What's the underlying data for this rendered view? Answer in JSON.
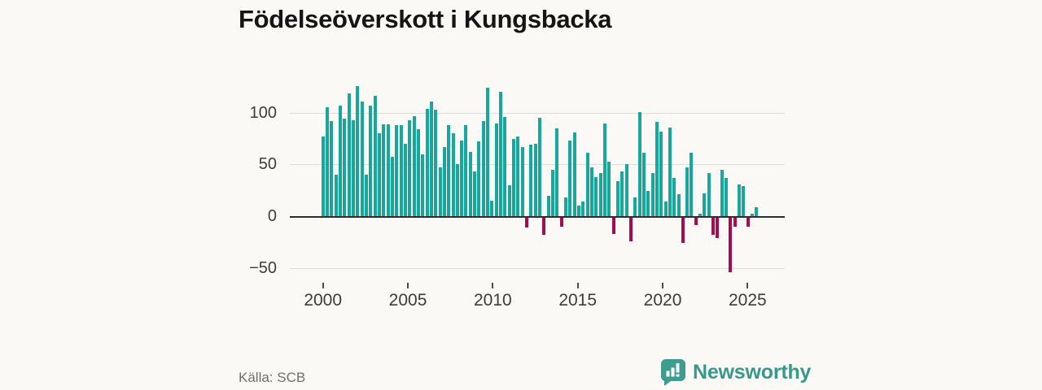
{
  "title": "Födelseöverskott i Kungsbacka",
  "source": "Källa: SCB",
  "branding": {
    "name": "Newsworthy",
    "logo_icon": "speech-bubble-bar-chart-icon",
    "color": "#37988c"
  },
  "colors": {
    "positive_bar": "#17a79c",
    "negative_bar": "#a50d50",
    "gridline": "#dcdcd8",
    "zero_line": "#2d2d2d",
    "background": "#fbf9f5",
    "axis_text": "#3c3c3c"
  },
  "chart_data": {
    "type": "bar",
    "title": "Födelseöverskott i Kungsbacka",
    "xlabel": "",
    "ylabel": "",
    "grid": "horizontal",
    "legend": "none",
    "frequency": "quarterly",
    "ylim": [
      -62,
      135
    ],
    "y_ticks": [
      100,
      50,
      0,
      -50
    ],
    "y_tick_labels": [
      "100",
      "50",
      "0",
      "−50"
    ],
    "x_tick_labels": [
      "2000",
      "2005",
      "2010",
      "2015",
      "2020",
      "2025"
    ],
    "categories": [
      "2000Q1",
      "2000Q2",
      "2000Q3",
      "2000Q4",
      "2001Q1",
      "2001Q2",
      "2001Q3",
      "2001Q4",
      "2002Q1",
      "2002Q2",
      "2002Q3",
      "2002Q4",
      "2003Q1",
      "2003Q2",
      "2003Q3",
      "2003Q4",
      "2004Q1",
      "2004Q2",
      "2004Q3",
      "2004Q4",
      "2005Q1",
      "2005Q2",
      "2005Q3",
      "2005Q4",
      "2006Q1",
      "2006Q2",
      "2006Q3",
      "2006Q4",
      "2007Q1",
      "2007Q2",
      "2007Q3",
      "2007Q4",
      "2008Q1",
      "2008Q2",
      "2008Q3",
      "2008Q4",
      "2009Q1",
      "2009Q2",
      "2009Q3",
      "2009Q4",
      "2010Q1",
      "2010Q2",
      "2010Q3",
      "2010Q4",
      "2011Q1",
      "2011Q2",
      "2011Q3",
      "2011Q4",
      "2012Q1",
      "2012Q2",
      "2012Q3",
      "2012Q4",
      "2013Q1",
      "2013Q2",
      "2013Q3",
      "2013Q4",
      "2014Q1",
      "2014Q2",
      "2014Q3",
      "2014Q4",
      "2015Q1",
      "2015Q2",
      "2015Q3",
      "2015Q4",
      "2016Q1",
      "2016Q2",
      "2016Q3",
      "2016Q4",
      "2017Q1",
      "2017Q2",
      "2017Q3",
      "2017Q4",
      "2018Q1",
      "2018Q2",
      "2018Q3",
      "2018Q4",
      "2019Q1",
      "2019Q2",
      "2019Q3",
      "2019Q4",
      "2020Q1",
      "2020Q2",
      "2020Q3",
      "2020Q4",
      "2021Q1",
      "2021Q2",
      "2021Q3",
      "2021Q4",
      "2022Q1",
      "2022Q2",
      "2022Q3",
      "2022Q4",
      "2023Q1",
      "2023Q2",
      "2023Q3",
      "2023Q4",
      "2024Q1",
      "2024Q2",
      "2024Q3",
      "2024Q4",
      "2025Q1"
    ],
    "values": [
      77,
      105,
      92,
      40,
      107,
      94,
      119,
      93,
      126,
      111,
      40,
      107,
      116,
      80,
      89,
      89,
      57,
      88,
      88,
      70,
      93,
      97,
      84,
      60,
      104,
      111,
      103,
      47,
      67,
      88,
      80,
      50,
      73,
      88,
      62,
      43,
      72,
      92,
      124,
      15,
      90,
      120,
      96,
      30,
      75,
      77,
      67,
      -11,
      69,
      70,
      95,
      -18,
      20,
      45,
      85,
      -10,
      18,
      73,
      81,
      10,
      14,
      61,
      47,
      38,
      42,
      90,
      53,
      -17,
      34,
      43,
      50,
      -24,
      18,
      101,
      61,
      24,
      42,
      91,
      82,
      14,
      86,
      37,
      21,
      -26,
      47,
      61,
      -9,
      2,
      22,
      42,
      -18,
      -21,
      45,
      37,
      -54,
      -10,
      31,
      29,
      -10,
      2,
      9
    ]
  }
}
